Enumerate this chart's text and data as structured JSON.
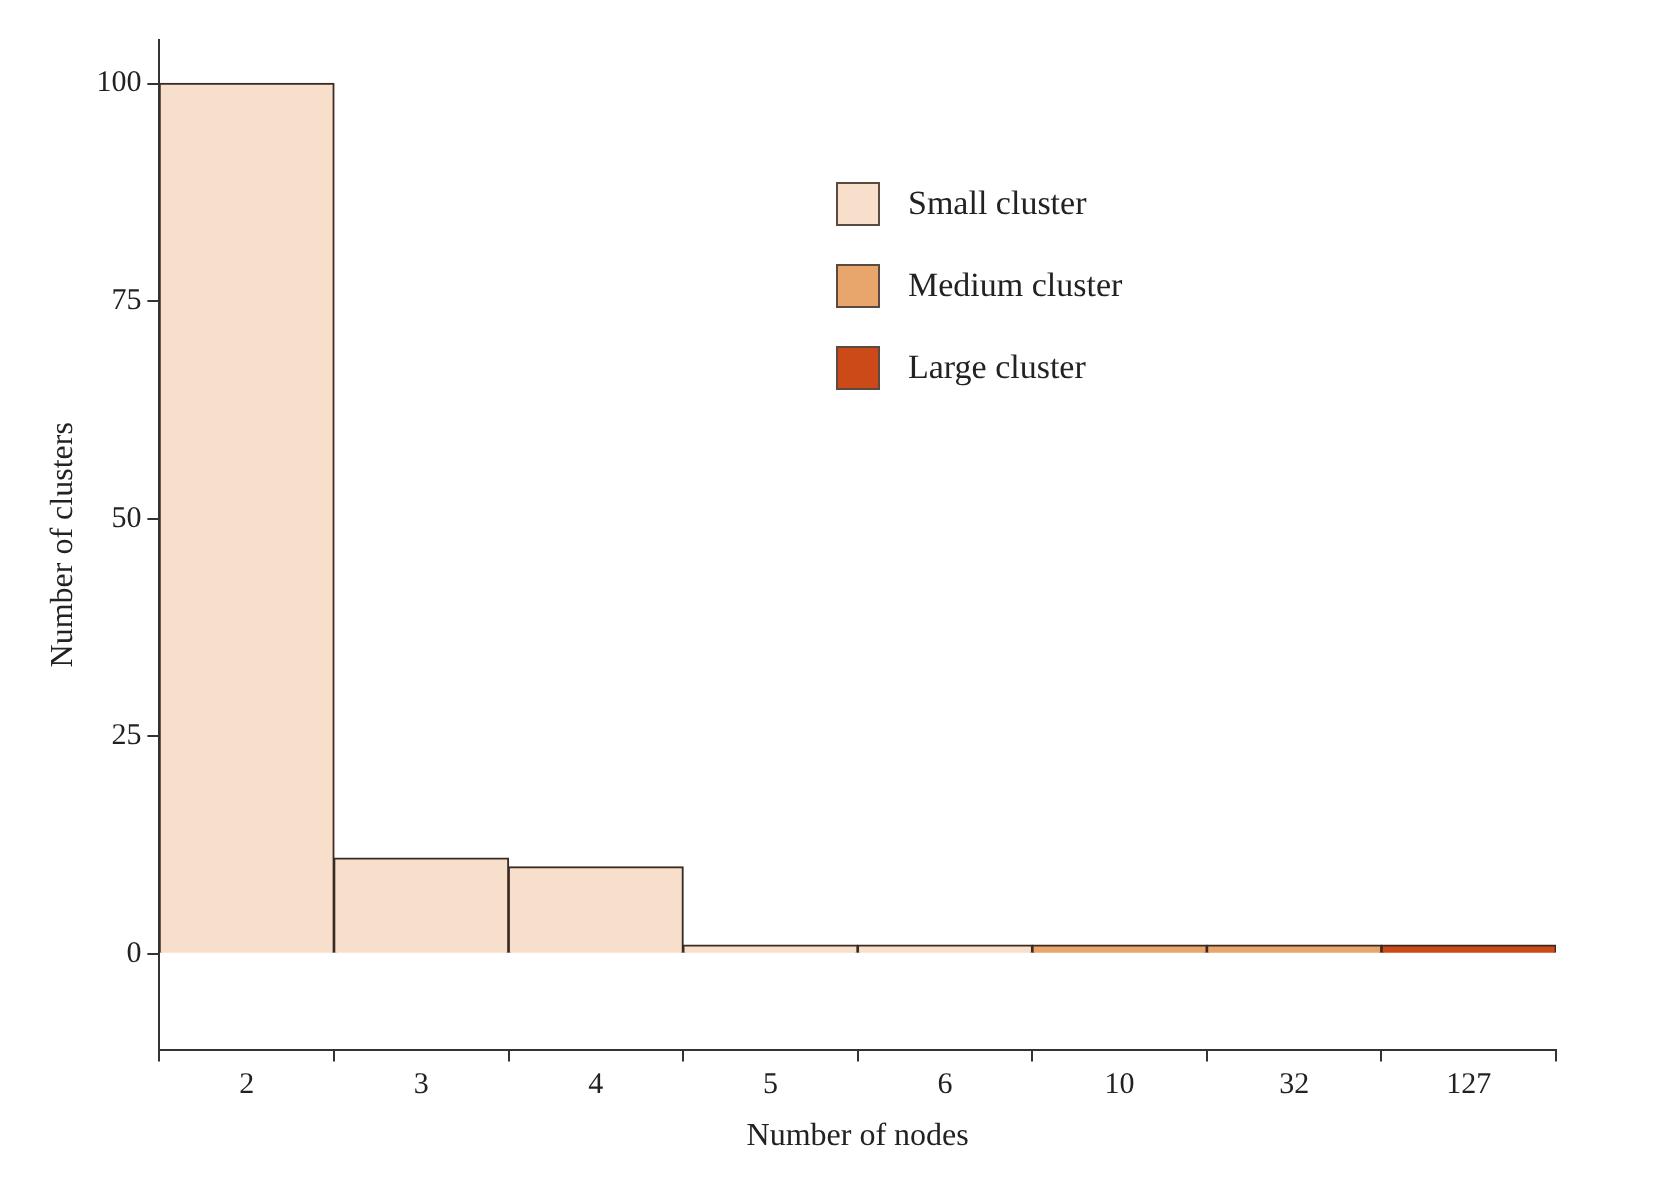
{
  "chart_data": {
    "type": "bar",
    "xlabel": "Number of nodes",
    "ylabel": "Number of clusters",
    "categories": [
      "2",
      "3",
      "4",
      "5",
      "6",
      "10",
      "32",
      "127"
    ],
    "series": [
      {
        "name": "Small cluster",
        "color": "#f8dfcb",
        "values": [
          100,
          11,
          10,
          1,
          1,
          null,
          null,
          null
        ]
      },
      {
        "name": "Medium cluster",
        "color": "#e8a56c",
        "values": [
          null,
          null,
          null,
          null,
          null,
          1,
          1,
          null
        ]
      },
      {
        "name": "Large cluster",
        "color": "#cc4a17",
        "values": [
          null,
          null,
          null,
          null,
          null,
          null,
          null,
          1
        ]
      }
    ],
    "stacked": true,
    "ylim": [
      -11,
      105
    ],
    "yticks": [
      0,
      25,
      50,
      75,
      100
    ],
    "grid": false,
    "legend": "top right"
  }
}
